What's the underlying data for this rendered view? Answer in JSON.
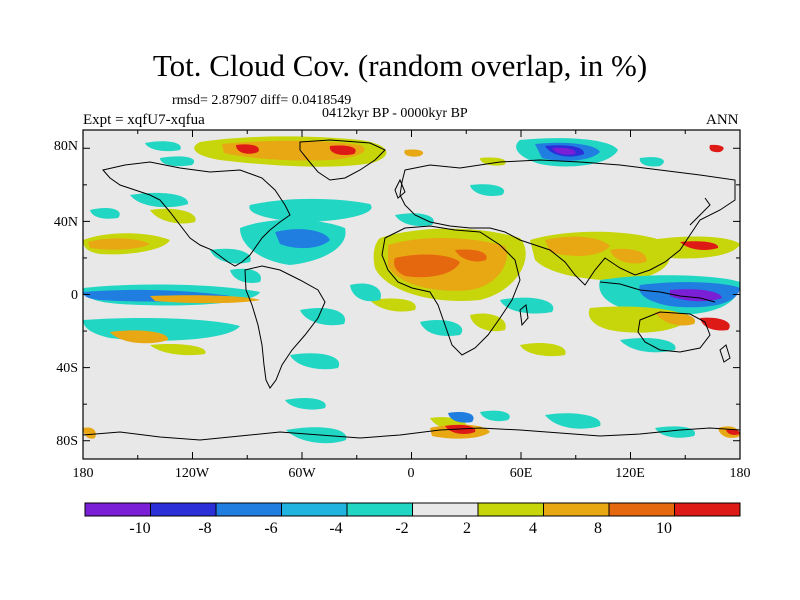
{
  "title": "Tot. Cloud Cov. (random overlap, in %)",
  "stats": "rmsd= 2.87907 diff= 0.0418549",
  "period": "0412kyr BP - 0000kyr BP",
  "experiment": "Expt = xqfU7-xqfua",
  "season": "ANN",
  "lat_ticks": [
    "80N",
    "40N",
    "0",
    "40S",
    "80S"
  ],
  "lon_ticks": [
    "180",
    "120W",
    "60W",
    "0",
    "60E",
    "120E",
    "180"
  ],
  "colorbar": {
    "labels": [
      "-10",
      "-8",
      "-6",
      "-4",
      "-2",
      "2",
      "4",
      "8",
      "10"
    ],
    "colors": [
      "#7a1fd6",
      "#2a2fd8",
      "#1f7ee0",
      "#21b3e0",
      "#22d6c4",
      "#e8e8e8",
      "#c6d60a",
      "#e8a814",
      "#e6680e",
      "#de1a16"
    ]
  }
}
